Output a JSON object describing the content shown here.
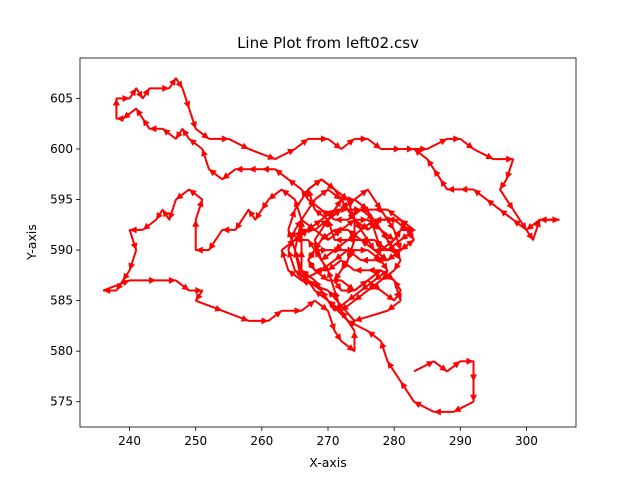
{
  "chart_data": {
    "type": "line",
    "title": "Line Plot from left02.csv",
    "xlabel": "X-axis",
    "ylabel": "Y-axis",
    "xlim": [
      232.5,
      307.5
    ],
    "ylim": [
      572.5,
      609
    ],
    "xticks": [
      240,
      250,
      260,
      270,
      280,
      290,
      300
    ],
    "yticks": [
      575,
      580,
      585,
      590,
      595,
      600,
      605
    ],
    "grid": false,
    "colors": {
      "line": "#1f77b4",
      "arrows": "#ff0000"
    },
    "series": [
      {
        "points": [
          [
            283,
            578
          ],
          [
            286,
            579
          ],
          [
            288,
            578
          ],
          [
            290,
            579
          ],
          [
            292,
            579
          ],
          [
            292,
            577
          ],
          [
            292,
            575
          ],
          [
            289,
            574
          ],
          [
            286,
            574
          ],
          [
            283,
            575
          ],
          [
            281,
            577
          ],
          [
            279,
            579
          ],
          [
            278,
            581
          ],
          [
            276,
            582
          ],
          [
            273,
            583
          ],
          [
            270,
            585
          ],
          [
            268,
            587
          ],
          [
            266,
            588
          ],
          [
            266,
            590
          ],
          [
            266,
            593
          ],
          [
            265,
            595
          ],
          [
            263,
            596
          ],
          [
            261,
            595
          ],
          [
            260,
            594
          ],
          [
            259,
            593
          ],
          [
            258,
            594
          ],
          [
            256,
            592
          ],
          [
            254,
            592
          ],
          [
            252,
            590
          ],
          [
            250,
            590
          ],
          [
            250,
            593
          ],
          [
            251,
            595
          ],
          [
            249,
            596
          ],
          [
            247,
            595
          ],
          [
            246,
            593
          ],
          [
            245,
            594
          ],
          [
            244,
            593
          ],
          [
            242,
            592
          ],
          [
            240,
            592
          ],
          [
            241,
            590
          ],
          [
            240,
            588
          ],
          [
            239,
            587
          ],
          [
            238,
            586
          ],
          [
            236,
            586
          ],
          [
            240,
            587
          ],
          [
            244,
            587
          ],
          [
            247,
            587
          ],
          [
            249,
            586
          ],
          [
            251,
            586
          ],
          [
            250,
            585
          ],
          [
            254,
            584
          ],
          [
            258,
            583
          ],
          [
            261,
            583
          ],
          [
            263,
            584
          ],
          [
            266,
            584
          ],
          [
            268,
            585
          ],
          [
            270,
            584
          ],
          [
            271,
            582
          ],
          [
            272,
            581
          ],
          [
            274,
            580
          ],
          [
            274,
            582
          ],
          [
            272,
            584
          ],
          [
            271,
            586
          ],
          [
            270,
            588
          ],
          [
            268,
            590
          ],
          [
            267,
            591
          ],
          [
            265,
            591
          ],
          [
            266,
            592
          ],
          [
            268,
            592
          ],
          [
            270,
            593
          ],
          [
            271,
            594
          ],
          [
            272,
            595
          ],
          [
            274,
            595
          ],
          [
            276,
            594
          ],
          [
            277,
            592
          ],
          [
            278,
            590
          ],
          [
            280,
            591
          ],
          [
            281,
            592
          ],
          [
            283,
            592
          ],
          [
            281,
            593
          ],
          [
            279,
            593
          ],
          [
            277,
            593
          ],
          [
            275,
            592
          ],
          [
            273,
            591
          ],
          [
            271,
            591
          ],
          [
            270,
            593
          ],
          [
            268,
            594
          ],
          [
            267,
            596
          ],
          [
            269,
            597
          ],
          [
            271,
            596
          ],
          [
            273,
            595
          ],
          [
            274,
            593
          ],
          [
            274,
            591
          ],
          [
            273,
            589
          ],
          [
            272,
            588
          ],
          [
            271,
            587
          ],
          [
            272,
            586
          ],
          [
            274,
            586
          ],
          [
            276,
            587
          ],
          [
            278,
            586
          ],
          [
            280,
            585
          ],
          [
            281,
            586
          ],
          [
            280,
            587
          ],
          [
            278,
            588
          ],
          [
            276,
            588
          ],
          [
            274,
            588
          ],
          [
            272,
            589
          ],
          [
            270,
            588
          ],
          [
            268,
            588
          ],
          [
            267,
            589
          ],
          [
            268,
            590
          ],
          [
            270,
            590
          ],
          [
            272,
            590
          ],
          [
            274,
            590
          ],
          [
            276,
            590
          ],
          [
            278,
            589
          ],
          [
            279,
            588
          ],
          [
            277,
            587
          ],
          [
            275,
            586
          ],
          [
            273,
            585
          ],
          [
            271,
            584
          ],
          [
            269,
            586
          ],
          [
            267,
            587
          ],
          [
            265,
            588
          ],
          [
            264,
            590
          ],
          [
            265,
            592
          ],
          [
            266,
            593
          ],
          [
            268,
            592
          ],
          [
            270,
            591
          ],
          [
            272,
            592
          ],
          [
            274,
            593
          ],
          [
            276,
            593
          ],
          [
            278,
            592
          ],
          [
            280,
            591
          ],
          [
            281,
            592
          ],
          [
            283,
            592
          ],
          [
            281,
            591
          ],
          [
            279,
            590
          ],
          [
            277,
            590
          ],
          [
            275,
            591
          ],
          [
            273,
            592
          ],
          [
            271,
            592
          ],
          [
            269,
            591
          ],
          [
            268,
            590
          ],
          [
            267,
            589
          ],
          [
            268,
            588
          ],
          [
            270,
            587
          ],
          [
            272,
            587
          ],
          [
            274,
            586
          ],
          [
            276,
            587
          ],
          [
            278,
            588
          ],
          [
            280,
            587
          ],
          [
            281,
            585
          ],
          [
            279,
            584
          ],
          [
            274,
            583
          ],
          [
            270,
            586
          ],
          [
            266,
            587
          ],
          [
            265,
            590
          ],
          [
            266,
            593
          ],
          [
            268,
            595
          ],
          [
            270,
            596
          ],
          [
            272,
            595
          ],
          [
            274,
            593
          ],
          [
            276,
            592
          ],
          [
            278,
            593
          ],
          [
            280,
            593
          ],
          [
            282,
            592
          ],
          [
            283,
            591
          ],
          [
            281,
            590
          ],
          [
            279,
            590
          ],
          [
            277,
            591
          ],
          [
            275,
            591
          ],
          [
            273,
            591
          ],
          [
            271,
            590
          ],
          [
            269,
            589
          ],
          [
            268,
            591
          ],
          [
            270,
            593
          ],
          [
            272,
            594
          ],
          [
            274,
            595
          ],
          [
            276,
            596
          ],
          [
            278,
            594
          ],
          [
            280,
            592
          ],
          [
            281,
            590
          ],
          [
            279,
            589
          ],
          [
            277,
            589
          ],
          [
            275,
            589
          ],
          [
            273,
            590
          ],
          [
            271,
            589
          ],
          [
            269,
            588
          ],
          [
            266,
            587
          ],
          [
            264,
            588
          ],
          [
            263,
            590
          ],
          [
            265,
            591
          ],
          [
            267,
            592
          ],
          [
            269,
            593
          ],
          [
            271,
            594
          ],
          [
            273,
            594
          ],
          [
            275,
            594
          ],
          [
            277,
            593
          ],
          [
            279,
            591
          ],
          [
            281,
            589
          ],
          [
            280,
            588
          ],
          [
            278,
            587
          ],
          [
            276,
            586
          ],
          [
            274,
            585
          ],
          [
            272,
            584
          ],
          [
            270,
            585
          ],
          [
            268,
            586
          ],
          [
            266,
            588
          ],
          [
            265,
            590
          ],
          [
            264,
            592
          ],
          [
            265,
            594
          ],
          [
            267,
            596
          ],
          [
            269,
            597
          ],
          [
            271,
            596
          ],
          [
            273,
            594
          ],
          [
            275,
            592
          ],
          [
            277,
            590
          ],
          [
            279,
            589
          ],
          [
            281,
            590
          ],
          [
            283,
            591
          ],
          [
            281,
            593
          ],
          [
            279,
            594
          ],
          [
            277,
            594
          ],
          [
            275,
            594
          ],
          [
            273,
            593
          ],
          [
            271,
            593
          ],
          [
            269,
            594
          ],
          [
            267,
            595
          ],
          [
            266,
            596
          ],
          [
            264,
            597
          ],
          [
            262,
            598
          ],
          [
            260,
            598
          ],
          [
            258,
            598
          ],
          [
            256,
            598
          ],
          [
            254,
            597
          ],
          [
            252,
            598
          ],
          [
            251,
            600
          ],
          [
            249,
            601
          ],
          [
            248,
            602
          ],
          [
            247,
            601
          ],
          [
            245,
            602
          ],
          [
            243,
            602
          ],
          [
            242,
            603
          ],
          [
            241,
            604
          ],
          [
            239,
            603
          ],
          [
            238,
            603
          ],
          [
            238,
            605
          ],
          [
            240,
            605
          ],
          [
            241,
            606
          ],
          [
            242,
            605
          ],
          [
            243,
            606
          ],
          [
            246,
            606
          ],
          [
            247,
            607
          ],
          [
            248,
            606
          ],
          [
            249,
            604
          ],
          [
            250,
            602
          ],
          [
            252,
            601
          ],
          [
            255,
            601
          ],
          [
            258,
            600
          ],
          [
            262,
            599
          ],
          [
            265,
            600
          ],
          [
            267,
            601
          ],
          [
            270,
            601
          ],
          [
            272,
            600
          ],
          [
            274,
            601
          ],
          [
            276,
            601
          ],
          [
            278,
            600
          ],
          [
            281,
            600
          ],
          [
            283,
            600
          ],
          [
            285,
            600
          ],
          [
            288,
            601
          ],
          [
            290,
            601
          ],
          [
            292,
            600
          ],
          [
            295,
            599
          ],
          [
            298,
            599
          ],
          [
            297,
            597
          ],
          [
            296,
            596
          ],
          [
            298,
            594
          ],
          [
            300,
            592
          ],
          [
            301,
            591
          ],
          [
            302,
            593
          ],
          [
            305,
            593
          ],
          [
            302,
            593
          ],
          [
            300,
            592
          ],
          [
            298,
            593
          ],
          [
            296,
            594
          ],
          [
            294,
            595
          ],
          [
            292,
            596
          ],
          [
            290,
            596
          ],
          [
            288,
            596
          ],
          [
            287,
            597
          ],
          [
            286,
            598
          ],
          [
            285,
            599
          ],
          [
            283,
            600
          ]
        ]
      }
    ]
  }
}
